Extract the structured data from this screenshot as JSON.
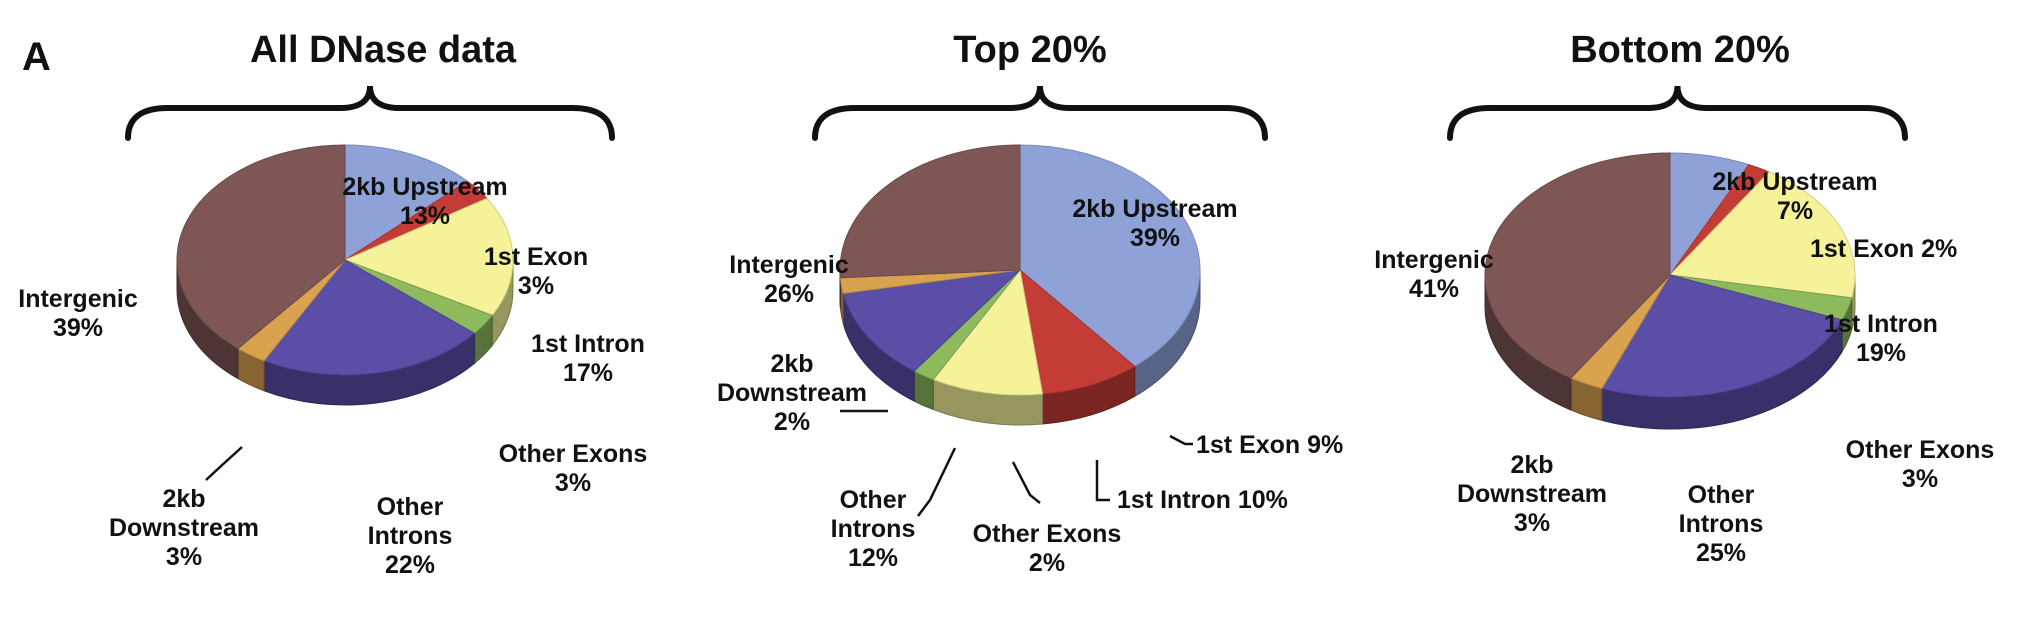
{
  "figure": {
    "panel_letter": "A"
  },
  "colors": {
    "2kb Upstream": "#8ea2d8",
    "1st Exon": "#c43c36",
    "1st Intron": "#f5f29a",
    "Other Exons": "#8dba5c",
    "Other Introns": "#5a4ea7",
    "2kb Downstream": "#d9a24f",
    "Intergenic": "#7e5656"
  },
  "chart_data": [
    {
      "type": "pie",
      "title": "All DNase data",
      "slices": [
        {
          "name": "2kb Upstream",
          "value": 13,
          "label": [
            "2kb Upstream",
            "13%"
          ]
        },
        {
          "name": "1st Exon",
          "value": 3,
          "label": [
            "1st Exon",
            "3%"
          ]
        },
        {
          "name": "1st Intron",
          "value": 17,
          "label": [
            "1st Intron",
            "17%"
          ]
        },
        {
          "name": "Other Exons",
          "value": 3,
          "label": [
            "Other Exons",
            "3%"
          ]
        },
        {
          "name": "Other Introns",
          "value": 22,
          "label": [
            "Other",
            "Introns",
            "22%"
          ]
        },
        {
          "name": "2kb Downstream",
          "value": 3,
          "label": [
            "2kb",
            "Downstream",
            "3%"
          ]
        },
        {
          "name": "Intergenic",
          "value": 39,
          "label": [
            "Intergenic",
            "39%"
          ]
        }
      ]
    },
    {
      "type": "pie",
      "title": "Top 20%",
      "slices": [
        {
          "name": "2kb Upstream",
          "value": 39,
          "label": [
            "2kb Upstream",
            "39%"
          ]
        },
        {
          "name": "1st Exon",
          "value": 9,
          "label": [
            "1st Exon 9%"
          ]
        },
        {
          "name": "1st Intron",
          "value": 10,
          "label": [
            "1st Intron 10%"
          ]
        },
        {
          "name": "Other Exons",
          "value": 2,
          "label": [
            "Other Exons",
            "2%"
          ]
        },
        {
          "name": "Other Introns",
          "value": 12,
          "label": [
            "Other",
            "Introns",
            "12%"
          ]
        },
        {
          "name": "2kb Downstream",
          "value": 2,
          "label": [
            "2kb",
            "Downstream",
            "2%"
          ]
        },
        {
          "name": "Intergenic",
          "value": 26,
          "label": [
            "Intergenic",
            "26%"
          ]
        }
      ]
    },
    {
      "type": "pie",
      "title": "Bottom 20%",
      "slices": [
        {
          "name": "2kb Upstream",
          "value": 7,
          "label": [
            "2kb Upstream",
            "7%"
          ]
        },
        {
          "name": "1st Exon",
          "value": 2,
          "label": [
            "1st Exon 2%"
          ]
        },
        {
          "name": "1st Intron",
          "value": 19,
          "label": [
            "1st Intron",
            "19%"
          ]
        },
        {
          "name": "Other Exons",
          "value": 3,
          "label": [
            "Other Exons",
            "3%"
          ]
        },
        {
          "name": "Other Introns",
          "value": 25,
          "label": [
            "Other",
            "Introns",
            "25%"
          ]
        },
        {
          "name": "2kb Downstream",
          "value": 3,
          "label": [
            "2kb",
            "Downstream",
            "3%"
          ]
        },
        {
          "name": "Intergenic",
          "value": 41,
          "label": [
            "Intergenic",
            "41%"
          ]
        }
      ]
    }
  ]
}
